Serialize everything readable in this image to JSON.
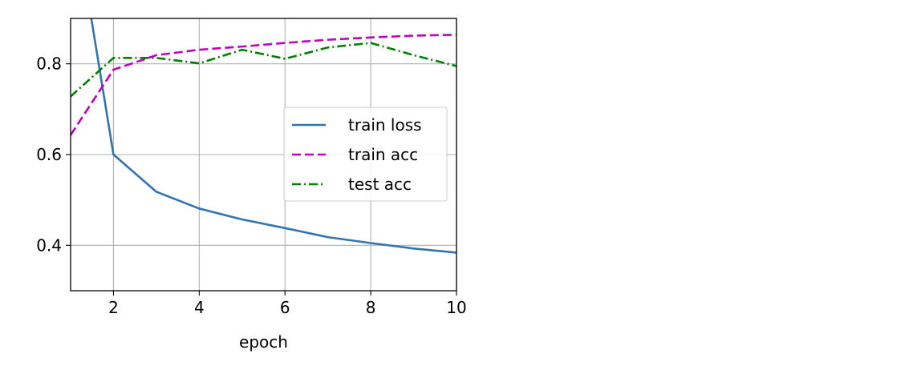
{
  "chart_data": {
    "type": "line",
    "title": "",
    "xlabel": "epoch",
    "ylabel": "",
    "xlim": [
      1,
      10
    ],
    "ylim": [
      0.3,
      0.9
    ],
    "xticks": [
      2,
      4,
      6,
      8,
      10
    ],
    "yticks": [
      0.4,
      0.6,
      0.8
    ],
    "xtick_labels": [
      "2",
      "4",
      "6",
      "8",
      "10"
    ],
    "ytick_labels": [
      "0.4",
      "0.6",
      "0.8"
    ],
    "grid": true,
    "legend_position": "center-right",
    "series": [
      {
        "name": "train loss",
        "color": "#3274b0",
        "dash": "solid",
        "x": [
          1,
          2,
          3,
          4,
          5,
          6,
          7,
          8,
          9,
          10
        ],
        "y": [
          1.18,
          0.6,
          0.518,
          0.481,
          0.457,
          0.438,
          0.418,
          0.405,
          0.393,
          0.384
        ]
      },
      {
        "name": "train acc",
        "color": "#bf00bf",
        "dash": "dashed",
        "x": [
          1,
          2,
          3,
          4,
          5,
          6,
          7,
          8,
          9,
          10
        ],
        "y": [
          0.643,
          0.787,
          0.819,
          0.831,
          0.838,
          0.846,
          0.853,
          0.858,
          0.862,
          0.864
        ]
      },
      {
        "name": "test acc",
        "color": "#008000",
        "dash": "dashdot",
        "x": [
          1,
          2,
          3,
          4,
          5,
          6,
          7,
          8,
          9,
          10
        ],
        "y": [
          0.728,
          0.813,
          0.813,
          0.801,
          0.831,
          0.811,
          0.836,
          0.846,
          0.819,
          0.795
        ]
      }
    ]
  }
}
